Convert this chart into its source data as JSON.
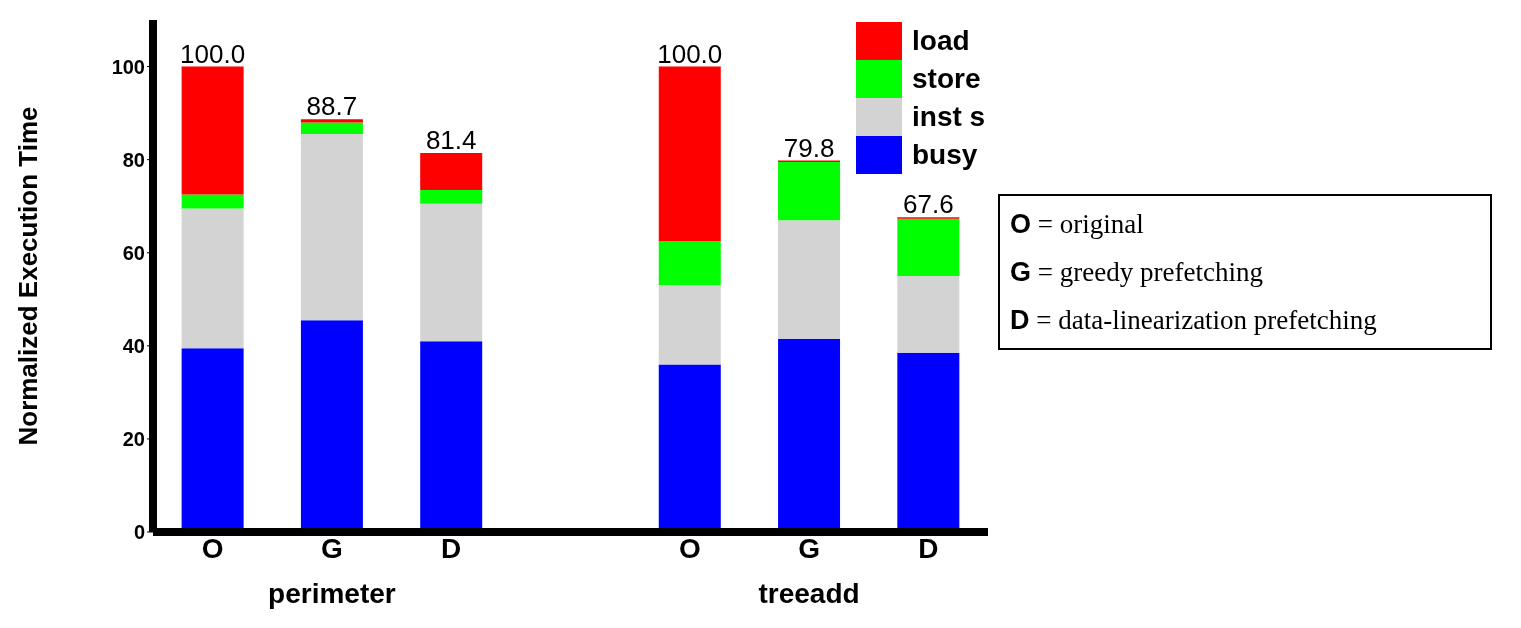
{
  "chart_data": {
    "type": "bar",
    "stacked": true,
    "ylabel": "Normalized Execution Time",
    "categories": [
      "O",
      "G",
      "D",
      null,
      "O",
      "G",
      "D"
    ],
    "series": [
      {
        "name": "busy",
        "color": "#0000ff",
        "values": [
          39.5,
          45.5,
          41,
          null,
          36,
          41.5,
          38.5
        ]
      },
      {
        "name": "inst s",
        "color": "#d3d3d3",
        "values": [
          30,
          40,
          29.5,
          null,
          17,
          25.5,
          16.5
        ]
      },
      {
        "name": "store",
        "color": "#00ff00",
        "values": [
          3,
          2.5,
          3,
          null,
          9.5,
          12.5,
          12.3
        ]
      },
      {
        "name": "load",
        "color": "#ff0000",
        "values": [
          27.5,
          0.7,
          7.9,
          null,
          37.5,
          0.3,
          0.3
        ]
      }
    ],
    "totals": [
      "100.0",
      "88.7",
      "81.4",
      null,
      "100.0",
      "79.8",
      "67.6"
    ],
    "ylim": [
      0,
      110
    ],
    "yticks": [
      0,
      20,
      40,
      60,
      80,
      100
    ],
    "legend": "top right",
    "annotations": [
      "perimeter",
      "treeadd",
      "O = original",
      "G = greedy prefetching",
      "D = data-linearization prefetching"
    ]
  }
}
